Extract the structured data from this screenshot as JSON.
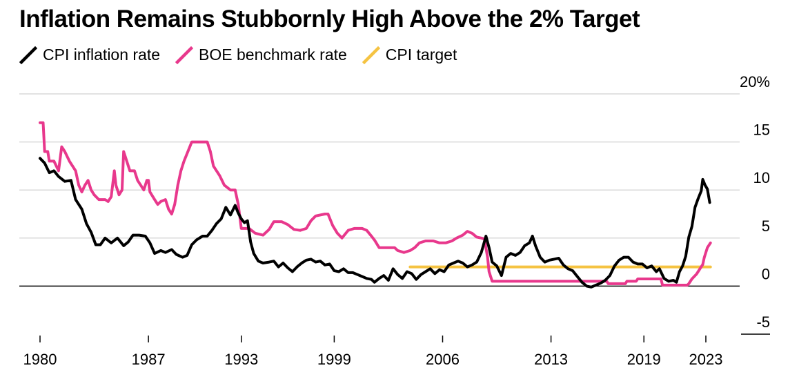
{
  "chart_data": {
    "type": "line",
    "title": "Inflation Remains Stubbornly High Above the 2% Target",
    "xlabel": "",
    "ylabel": "",
    "xlim": [
      1980,
      2024.5
    ],
    "ylim": [
      -5,
      20
    ],
    "x_ticks": [
      {
        "value": 1980,
        "label": "1980"
      },
      {
        "value": 1987,
        "label": "1987"
      },
      {
        "value": 1993,
        "label": "1993"
      },
      {
        "value": 1999,
        "label": "1999"
      },
      {
        "value": 2006,
        "label": "2006"
      },
      {
        "value": 2013,
        "label": "2013"
      },
      {
        "value": 2019,
        "label": "2019"
      },
      {
        "value": 2023,
        "label": "2023"
      }
    ],
    "y_ticks": [
      {
        "value": 20,
        "label": "20%"
      },
      {
        "value": 15,
        "label": "15"
      },
      {
        "value": 10,
        "label": "10"
      },
      {
        "value": 5,
        "label": "5"
      },
      {
        "value": 0,
        "label": "0"
      },
      {
        "value": -5,
        "label": "-5"
      }
    ],
    "grid": true,
    "legend_position": "top-left",
    "series": [
      {
        "name": "CPI inflation rate",
        "color": "#000000",
        "points": [
          [
            1980.0,
            13.3
          ],
          [
            1980.3,
            12.8
          ],
          [
            1980.6,
            11.8
          ],
          [
            1980.9,
            12.0
          ],
          [
            1981.2,
            11.4
          ],
          [
            1981.6,
            10.9
          ],
          [
            1982.0,
            11.0
          ],
          [
            1982.3,
            9.0
          ],
          [
            1982.7,
            8.0
          ],
          [
            1983.0,
            6.5
          ],
          [
            1983.3,
            5.6
          ],
          [
            1983.6,
            4.3
          ],
          [
            1983.9,
            4.3
          ],
          [
            1984.2,
            5.0
          ],
          [
            1984.6,
            4.5
          ],
          [
            1985.0,
            5.0
          ],
          [
            1985.4,
            4.2
          ],
          [
            1985.7,
            4.6
          ],
          [
            1986.0,
            5.3
          ],
          [
            1986.4,
            5.3
          ],
          [
            1986.8,
            5.2
          ],
          [
            1987.1,
            4.5
          ],
          [
            1987.4,
            3.4
          ],
          [
            1987.8,
            3.7
          ],
          [
            1988.1,
            3.5
          ],
          [
            1988.5,
            3.8
          ],
          [
            1988.8,
            3.3
          ],
          [
            1989.2,
            3.0
          ],
          [
            1989.5,
            3.2
          ],
          [
            1989.8,
            4.3
          ],
          [
            1990.1,
            4.8
          ],
          [
            1990.5,
            5.2
          ],
          [
            1990.8,
            5.2
          ],
          [
            1991.1,
            5.8
          ],
          [
            1991.4,
            6.5
          ],
          [
            1991.7,
            7.0
          ],
          [
            1992.0,
            8.2
          ],
          [
            1992.3,
            7.4
          ],
          [
            1992.6,
            8.4
          ],
          [
            1992.8,
            7.6
          ],
          [
            1993.0,
            7.0
          ],
          [
            1993.2,
            6.6
          ],
          [
            1993.4,
            6.8
          ],
          [
            1993.6,
            4.6
          ],
          [
            1993.8,
            3.4
          ],
          [
            1994.1,
            2.6
          ],
          [
            1994.4,
            2.4
          ],
          [
            1994.8,
            2.5
          ],
          [
            1995.1,
            2.6
          ],
          [
            1995.4,
            2.0
          ],
          [
            1995.7,
            2.4
          ],
          [
            1996.0,
            1.9
          ],
          [
            1996.3,
            1.5
          ],
          [
            1996.6,
            2.0
          ],
          [
            1996.9,
            2.4
          ],
          [
            1997.2,
            2.7
          ],
          [
            1997.5,
            2.8
          ],
          [
            1997.8,
            2.5
          ],
          [
            1998.1,
            2.6
          ],
          [
            1998.4,
            2.2
          ],
          [
            1998.7,
            2.3
          ],
          [
            1999.0,
            1.6
          ],
          [
            1999.3,
            1.5
          ],
          [
            1999.6,
            1.8
          ],
          [
            1999.9,
            1.4
          ],
          [
            2000.2,
            1.4
          ],
          [
            2000.5,
            1.2
          ],
          [
            2000.8,
            1.0
          ],
          [
            2001.1,
            0.8
          ],
          [
            2001.4,
            0.7
          ],
          [
            2001.6,
            0.4
          ],
          [
            2001.9,
            0.8
          ],
          [
            2002.2,
            1.1
          ],
          [
            2002.5,
            0.6
          ],
          [
            2002.8,
            1.8
          ],
          [
            2003.1,
            1.2
          ],
          [
            2003.4,
            0.8
          ],
          [
            2003.7,
            1.5
          ],
          [
            2004.0,
            1.3
          ],
          [
            2004.3,
            0.7
          ],
          [
            2004.6,
            1.2
          ],
          [
            2004.9,
            1.5
          ],
          [
            2005.2,
            1.8
          ],
          [
            2005.5,
            1.3
          ],
          [
            2005.8,
            1.7
          ],
          [
            2006.1,
            1.5
          ],
          [
            2006.4,
            2.2
          ],
          [
            2006.7,
            2.4
          ],
          [
            2007.0,
            2.6
          ],
          [
            2007.3,
            2.4
          ],
          [
            2007.6,
            2.0
          ],
          [
            2007.9,
            2.2
          ],
          [
            2008.2,
            2.5
          ],
          [
            2008.5,
            3.5
          ],
          [
            2008.8,
            5.2
          ],
          [
            2009.0,
            4.0
          ],
          [
            2009.2,
            2.5
          ],
          [
            2009.5,
            2.1
          ],
          [
            2009.8,
            1.1
          ],
          [
            2010.1,
            3.0
          ],
          [
            2010.4,
            3.4
          ],
          [
            2010.7,
            3.2
          ],
          [
            2011.0,
            3.5
          ],
          [
            2011.3,
            4.2
          ],
          [
            2011.6,
            4.5
          ],
          [
            2011.8,
            5.2
          ],
          [
            2012.0,
            4.2
          ],
          [
            2012.3,
            3.0
          ],
          [
            2012.6,
            2.5
          ],
          [
            2012.9,
            2.7
          ],
          [
            2013.2,
            2.8
          ],
          [
            2013.5,
            2.9
          ],
          [
            2013.8,
            2.2
          ],
          [
            2014.1,
            1.8
          ],
          [
            2014.4,
            1.6
          ],
          [
            2014.7,
            1.0
          ],
          [
            2015.0,
            0.4
          ],
          [
            2015.3,
            0.0
          ],
          [
            2015.6,
            -0.1
          ],
          [
            2015.9,
            0.1
          ],
          [
            2016.2,
            0.3
          ],
          [
            2016.5,
            0.6
          ],
          [
            2016.8,
            1.1
          ],
          [
            2017.1,
            2.1
          ],
          [
            2017.4,
            2.7
          ],
          [
            2017.7,
            3.0
          ],
          [
            2018.0,
            3.0
          ],
          [
            2018.3,
            2.5
          ],
          [
            2018.6,
            2.3
          ],
          [
            2018.9,
            2.3
          ],
          [
            2019.2,
            1.9
          ],
          [
            2019.5,
            2.1
          ],
          [
            2019.8,
            1.5
          ],
          [
            2020.0,
            1.8
          ],
          [
            2020.3,
            0.8
          ],
          [
            2020.6,
            0.5
          ],
          [
            2020.9,
            0.6
          ],
          [
            2021.1,
            0.4
          ],
          [
            2021.3,
            1.5
          ],
          [
            2021.5,
            2.1
          ],
          [
            2021.7,
            3.1
          ],
          [
            2021.9,
            5.1
          ],
          [
            2022.1,
            6.2
          ],
          [
            2022.3,
            8.2
          ],
          [
            2022.5,
            9.1
          ],
          [
            2022.7,
            9.9
          ],
          [
            2022.8,
            11.1
          ],
          [
            2022.95,
            10.5
          ],
          [
            2023.1,
            10.1
          ],
          [
            2023.25,
            8.7
          ]
        ]
      },
      {
        "name": "BOE benchmark rate",
        "color": "#e8388c",
        "points": [
          [
            1980.0,
            17.0
          ],
          [
            1980.2,
            17.0
          ],
          [
            1980.3,
            14.0
          ],
          [
            1980.5,
            14.0
          ],
          [
            1980.6,
            13.0
          ],
          [
            1980.9,
            13.0
          ],
          [
            1981.2,
            12.0
          ],
          [
            1981.4,
            14.5
          ],
          [
            1981.6,
            14.0
          ],
          [
            1981.9,
            13.0
          ],
          [
            1982.1,
            12.5
          ],
          [
            1982.3,
            12.0
          ],
          [
            1982.5,
            10.5
          ],
          [
            1982.7,
            9.8
          ],
          [
            1982.9,
            10.5
          ],
          [
            1983.1,
            11.0
          ],
          [
            1983.3,
            10.0
          ],
          [
            1983.5,
            9.5
          ],
          [
            1983.8,
            9.0
          ],
          [
            1984.2,
            9.0
          ],
          [
            1984.4,
            8.8
          ],
          [
            1984.6,
            9.3
          ],
          [
            1984.8,
            12.0
          ],
          [
            1984.9,
            10.5
          ],
          [
            1985.1,
            9.5
          ],
          [
            1985.3,
            10.0
          ],
          [
            1985.4,
            14.0
          ],
          [
            1985.6,
            13.0
          ],
          [
            1985.8,
            12.0
          ],
          [
            1986.1,
            12.0
          ],
          [
            1986.3,
            11.0
          ],
          [
            1986.5,
            10.5
          ],
          [
            1986.7,
            10.0
          ],
          [
            1986.9,
            11.0
          ],
          [
            1987.0,
            11.0
          ],
          [
            1987.1,
            9.8
          ],
          [
            1987.4,
            9.0
          ],
          [
            1987.6,
            8.5
          ],
          [
            1987.8,
            8.8
          ],
          [
            1988.1,
            9.0
          ],
          [
            1988.3,
            8.0
          ],
          [
            1988.5,
            7.5
          ],
          [
            1988.7,
            8.5
          ],
          [
            1988.9,
            10.5
          ],
          [
            1989.1,
            12.0
          ],
          [
            1989.3,
            13.0
          ],
          [
            1989.5,
            13.8
          ],
          [
            1989.8,
            15.0
          ],
          [
            1990.4,
            15.0
          ],
          [
            1990.8,
            15.0
          ],
          [
            1991.0,
            14.0
          ],
          [
            1991.2,
            12.5
          ],
          [
            1991.6,
            11.5
          ],
          [
            1991.9,
            10.5
          ],
          [
            1992.3,
            10.0
          ],
          [
            1992.6,
            10.0
          ],
          [
            1992.8,
            8.5
          ],
          [
            1993.0,
            6.0
          ],
          [
            1993.5,
            6.0
          ],
          [
            1993.9,
            5.5
          ],
          [
            1994.4,
            5.3
          ],
          [
            1994.8,
            5.9
          ],
          [
            1995.1,
            6.7
          ],
          [
            1995.6,
            6.7
          ],
          [
            1996.0,
            6.4
          ],
          [
            1996.4,
            5.9
          ],
          [
            1996.8,
            5.8
          ],
          [
            1997.2,
            6.0
          ],
          [
            1997.5,
            6.8
          ],
          [
            1997.8,
            7.3
          ],
          [
            1998.4,
            7.5
          ],
          [
            1998.6,
            7.5
          ],
          [
            1998.9,
            6.3
          ],
          [
            1999.2,
            5.5
          ],
          [
            1999.5,
            5.0
          ],
          [
            1999.9,
            5.8
          ],
          [
            2000.3,
            6.0
          ],
          [
            2000.8,
            6.0
          ],
          [
            2001.1,
            5.8
          ],
          [
            2001.4,
            5.2
          ],
          [
            2001.6,
            4.8
          ],
          [
            2001.9,
            4.0
          ],
          [
            2002.5,
            4.0
          ],
          [
            2002.9,
            4.0
          ],
          [
            2003.1,
            3.7
          ],
          [
            2003.5,
            3.5
          ],
          [
            2003.9,
            3.7
          ],
          [
            2004.2,
            4.0
          ],
          [
            2004.5,
            4.5
          ],
          [
            2004.9,
            4.7
          ],
          [
            2005.4,
            4.7
          ],
          [
            2005.8,
            4.5
          ],
          [
            2006.2,
            4.5
          ],
          [
            2006.6,
            4.7
          ],
          [
            2006.9,
            5.0
          ],
          [
            2007.3,
            5.3
          ],
          [
            2007.6,
            5.7
          ],
          [
            2007.9,
            5.5
          ],
          [
            2008.2,
            5.1
          ],
          [
            2008.5,
            5.0
          ],
          [
            2008.7,
            4.9
          ],
          [
            2008.9,
            3.0
          ],
          [
            2009.0,
            1.5
          ],
          [
            2009.2,
            0.5
          ],
          [
            2013.0,
            0.5
          ],
          [
            2016.6,
            0.5
          ],
          [
            2016.7,
            0.25
          ],
          [
            2017.8,
            0.25
          ],
          [
            2017.9,
            0.5
          ],
          [
            2018.5,
            0.5
          ],
          [
            2018.6,
            0.75
          ],
          [
            2020.1,
            0.75
          ],
          [
            2020.2,
            0.1
          ],
          [
            2021.8,
            0.1
          ],
          [
            2021.9,
            0.25
          ],
          [
            2022.1,
            0.75
          ],
          [
            2022.4,
            1.25
          ],
          [
            2022.6,
            1.75
          ],
          [
            2022.8,
            2.25
          ],
          [
            2022.9,
            3.0
          ],
          [
            2023.0,
            3.5
          ],
          [
            2023.1,
            4.0
          ],
          [
            2023.3,
            4.5
          ]
        ]
      },
      {
        "name": "CPI target",
        "color": "#f5c342",
        "points": [
          [
            2003.9,
            2.0
          ],
          [
            2023.3,
            2.0
          ]
        ]
      }
    ]
  }
}
